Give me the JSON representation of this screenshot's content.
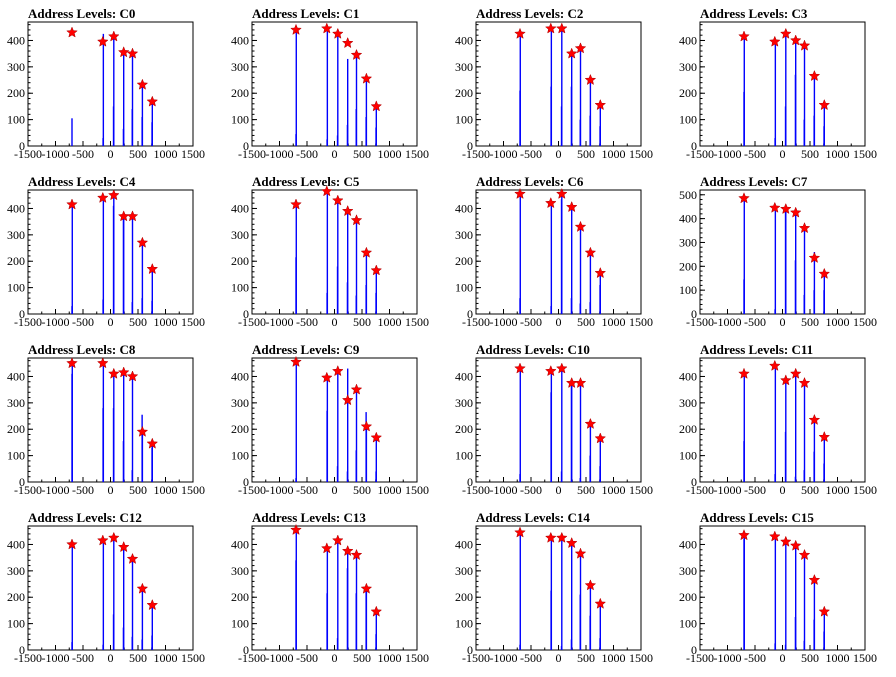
{
  "figure": {
    "panel_title_prefix": "Address Levels: ",
    "bar_color": "#0000ff",
    "marker_color": "#ff0000",
    "x_ticks": [
      "-1500",
      "-1000",
      "-500",
      "0",
      "500",
      "1000",
      "1500"
    ],
    "y_ticks_default": [
      "0",
      "100",
      "200",
      "300",
      "400"
    ],
    "y_ticks_c7": [
      "0",
      "100",
      "200",
      "300",
      "400",
      "500"
    ]
  },
  "chart_data": [
    {
      "type": "bar",
      "title": "Address Levels: C0",
      "xlim": [
        -1500,
        1500
      ],
      "ylim": [
        0,
        470
      ],
      "x_peak": [
        -700,
        -140,
        60,
        240,
        400,
        580,
        760
      ],
      "y_peak": [
        430,
        395,
        415,
        355,
        350,
        232,
        168
      ],
      "x_bar": [
        -700,
        -135,
        -130,
        55,
        60,
        235,
        240,
        395,
        400,
        575,
        580,
        755,
        760
      ],
      "y_bar": [
        105,
        30,
        425,
        150,
        430,
        65,
        350,
        140,
        345,
        110,
        225,
        90,
        160
      ]
    },
    {
      "type": "bar",
      "title": "Address Levels: C1",
      "xlim": [
        -1500,
        1500
      ],
      "ylim": [
        0,
        470
      ],
      "x_peak": [
        -700,
        -140,
        60,
        240,
        400,
        580,
        760
      ],
      "y_peak": [
        440,
        445,
        425,
        390,
        345,
        255,
        150
      ],
      "x_bar": [
        -700,
        -695,
        -135,
        -130,
        55,
        60,
        235,
        240,
        395,
        400,
        575,
        580,
        755,
        760
      ],
      "y_bar": [
        45,
        440,
        25,
        435,
        40,
        415,
        80,
        330,
        140,
        340,
        110,
        250,
        70,
        145
      ]
    },
    {
      "type": "bar",
      "title": "Address Levels: C2",
      "xlim": [
        -1500,
        1500
      ],
      "ylim": [
        0,
        470
      ],
      "x_peak": [
        -700,
        -140,
        60,
        240,
        400,
        580,
        760
      ],
      "y_peak": [
        425,
        445,
        445,
        350,
        370,
        250,
        155
      ],
      "x_bar": [
        -700,
        -695,
        -135,
        -130,
        55,
        60,
        235,
        240,
        395,
        400,
        575,
        580,
        755,
        760
      ],
      "y_bar": [
        210,
        420,
        225,
        440,
        150,
        440,
        225,
        345,
        100,
        365,
        115,
        245,
        75,
        150
      ]
    },
    {
      "type": "bar",
      "title": "Address Levels: C3",
      "xlim": [
        -1500,
        1500
      ],
      "ylim": [
        0,
        470
      ],
      "x_peak": [
        -700,
        -140,
        60,
        240,
        400,
        580,
        760
      ],
      "y_peak": [
        415,
        395,
        425,
        400,
        380,
        265,
        155
      ],
      "x_bar": [
        -700,
        -695,
        -135,
        -130,
        55,
        60,
        235,
        240,
        395,
        400,
        575,
        580,
        755,
        760
      ],
      "y_bar": [
        205,
        410,
        30,
        390,
        150,
        420,
        270,
        395,
        100,
        375,
        115,
        260,
        75,
        150
      ]
    },
    {
      "type": "bar",
      "title": "Address Levels: C4",
      "xlim": [
        -1500,
        1500
      ],
      "ylim": [
        0,
        470
      ],
      "x_peak": [
        -700,
        -140,
        60,
        240,
        400,
        580,
        760
      ],
      "y_peak": [
        415,
        440,
        450,
        370,
        370,
        270,
        170
      ],
      "x_bar": [
        -700,
        -695,
        -135,
        -130,
        55,
        60,
        235,
        240,
        395,
        400,
        575,
        580,
        755,
        760
      ],
      "y_bar": [
        30,
        410,
        55,
        435,
        410,
        445,
        360,
        365,
        45,
        365,
        60,
        265,
        50,
        165
      ]
    },
    {
      "type": "bar",
      "title": "Address Levels: C5",
      "xlim": [
        -1500,
        1500
      ],
      "ylim": [
        0,
        470
      ],
      "x_peak": [
        -700,
        -140,
        60,
        240,
        400,
        580,
        760
      ],
      "y_peak": [
        415,
        465,
        430,
        390,
        355,
        232,
        165
      ],
      "x_bar": [
        -700,
        -695,
        -135,
        -130,
        55,
        60,
        235,
        240,
        395,
        400,
        575,
        580,
        755,
        760
      ],
      "y_bar": [
        215,
        410,
        80,
        460,
        180,
        425,
        120,
        385,
        70,
        350,
        110,
        225,
        80,
        160
      ]
    },
    {
      "type": "bar",
      "title": "Address Levels: C6",
      "xlim": [
        -1500,
        1500
      ],
      "ylim": [
        0,
        470
      ],
      "x_peak": [
        -700,
        -140,
        60,
        240,
        400,
        580,
        760
      ],
      "y_peak": [
        455,
        420,
        455,
        405,
        330,
        232,
        155
      ],
      "x_bar": [
        -700,
        -695,
        -135,
        -130,
        55,
        60,
        235,
        240,
        395,
        400,
        575,
        580,
        755,
        760
      ],
      "y_bar": [
        60,
        450,
        30,
        415,
        435,
        450,
        60,
        400,
        40,
        325,
        45,
        225,
        110,
        150
      ]
    },
    {
      "type": "bar",
      "title": "Address Levels: C7",
      "xlim": [
        -1500,
        1500
      ],
      "ylim": [
        0,
        520
      ],
      "x_peak": [
        -700,
        -140,
        60,
        240,
        400,
        580,
        760
      ],
      "y_peak": [
        485,
        445,
        440,
        425,
        360,
        235,
        168
      ],
      "x_bar": [
        -700,
        -695,
        -135,
        -130,
        55,
        60,
        235,
        240,
        395,
        400,
        575,
        580,
        755,
        760
      ],
      "y_bar": [
        145,
        480,
        20,
        440,
        440,
        435,
        225,
        420,
        80,
        355,
        100,
        260,
        100,
        160
      ]
    },
    {
      "type": "bar",
      "title": "Address Levels: C8",
      "xlim": [
        -1500,
        1500
      ],
      "ylim": [
        0,
        470
      ],
      "x_peak": [
        -700,
        -140,
        60,
        240,
        400,
        580,
        760
      ],
      "y_peak": [
        450,
        450,
        410,
        415,
        400,
        190,
        145
      ],
      "x_bar": [
        -700,
        -695,
        -135,
        -130,
        55,
        60,
        235,
        240,
        395,
        400,
        575,
        580,
        755,
        760
      ],
      "y_bar": [
        410,
        445,
        280,
        445,
        280,
        405,
        155,
        410,
        45,
        395,
        255,
        185,
        130,
        140
      ]
    },
    {
      "type": "bar",
      "title": "Address Levels: C9",
      "xlim": [
        -1500,
        1500
      ],
      "ylim": [
        0,
        470
      ],
      "x_peak": [
        -700,
        -140,
        60,
        240,
        400,
        580,
        760
      ],
      "y_peak": [
        455,
        395,
        420,
        310,
        350,
        210,
        168
      ],
      "x_bar": [
        -700,
        -695,
        -135,
        -130,
        55,
        60,
        235,
        240,
        395,
        400,
        575,
        580,
        755,
        760
      ],
      "y_bar": [
        15,
        450,
        270,
        390,
        60,
        415,
        40,
        430,
        120,
        345,
        265,
        205,
        40,
        160
      ]
    },
    {
      "type": "bar",
      "title": "Address Levels: C10",
      "xlim": [
        -1500,
        1500
      ],
      "ylim": [
        0,
        470
      ],
      "x_peak": [
        -700,
        -140,
        60,
        240,
        400,
        580,
        760
      ],
      "y_peak": [
        430,
        420,
        430,
        375,
        375,
        220,
        165
      ],
      "x_bar": [
        -700,
        -695,
        -135,
        -130,
        55,
        60,
        235,
        240,
        395,
        400,
        575,
        580,
        755,
        760
      ],
      "y_bar": [
        30,
        425,
        340,
        415,
        40,
        425,
        360,
        370,
        15,
        370,
        100,
        215,
        60,
        160
      ]
    },
    {
      "type": "bar",
      "title": "Address Levels: C11",
      "xlim": [
        -1500,
        1500
      ],
      "ylim": [
        0,
        470
      ],
      "x_peak": [
        -700,
        -140,
        60,
        240,
        400,
        580,
        760
      ],
      "y_peak": [
        410,
        440,
        385,
        410,
        375,
        235,
        170
      ],
      "x_bar": [
        -700,
        -695,
        -135,
        -130,
        55,
        60,
        235,
        240,
        395,
        400,
        575,
        580,
        755,
        760
      ],
      "y_bar": [
        155,
        405,
        30,
        435,
        190,
        380,
        20,
        405,
        45,
        370,
        115,
        230,
        70,
        165
      ]
    },
    {
      "type": "bar",
      "title": "Address Levels: C12",
      "xlim": [
        -1500,
        1500
      ],
      "ylim": [
        0,
        470
      ],
      "x_peak": [
        -700,
        -140,
        60,
        240,
        400,
        580,
        760
      ],
      "y_peak": [
        400,
        415,
        425,
        390,
        345,
        232,
        170
      ],
      "x_bar": [
        -700,
        -695,
        -135,
        -130,
        55,
        60,
        235,
        240,
        395,
        400,
        575,
        580,
        755,
        760
      ],
      "y_bar": [
        30,
        395,
        20,
        410,
        135,
        420,
        85,
        385,
        50,
        340,
        40,
        225,
        55,
        165
      ]
    },
    {
      "type": "bar",
      "title": "Address Levels: C13",
      "xlim": [
        -1500,
        1500
      ],
      "ylim": [
        0,
        470
      ],
      "x_peak": [
        -700,
        -140,
        60,
        240,
        400,
        580,
        760
      ],
      "y_peak": [
        455,
        385,
        415,
        375,
        360,
        232,
        145
      ],
      "x_bar": [
        -700,
        -695,
        -135,
        -130,
        55,
        60,
        235,
        240,
        395,
        400,
        575,
        580,
        755,
        760
      ],
      "y_bar": [
        340,
        450,
        215,
        380,
        45,
        410,
        310,
        370,
        215,
        355,
        235,
        225,
        60,
        140
      ]
    },
    {
      "type": "bar",
      "title": "Address Levels: C14",
      "xlim": [
        -1500,
        1500
      ],
      "ylim": [
        0,
        470
      ],
      "x_peak": [
        -700,
        -140,
        60,
        240,
        400,
        580,
        760
      ],
      "y_peak": [
        445,
        425,
        425,
        405,
        365,
        245,
        175
      ],
      "x_bar": [
        -700,
        -695,
        -135,
        -130,
        55,
        60,
        235,
        240,
        395,
        400,
        575,
        580,
        755,
        760
      ],
      "y_bar": [
        20,
        440,
        225,
        420,
        15,
        420,
        40,
        400,
        210,
        360,
        130,
        240,
        45,
        170
      ]
    },
    {
      "type": "bar",
      "title": "Address Levels: C15",
      "xlim": [
        -1500,
        1500
      ],
      "ylim": [
        0,
        470
      ],
      "x_peak": [
        -700,
        -140,
        60,
        240,
        400,
        580,
        760
      ],
      "y_peak": [
        435,
        430,
        410,
        395,
        360,
        265,
        145
      ],
      "x_bar": [
        -700,
        -695,
        -135,
        -130,
        55,
        60,
        235,
        240,
        395,
        400,
        575,
        580,
        755,
        760
      ],
      "y_bar": [
        420,
        430,
        25,
        425,
        20,
        405,
        125,
        390,
        35,
        355,
        115,
        260,
        70,
        140
      ]
    }
  ]
}
